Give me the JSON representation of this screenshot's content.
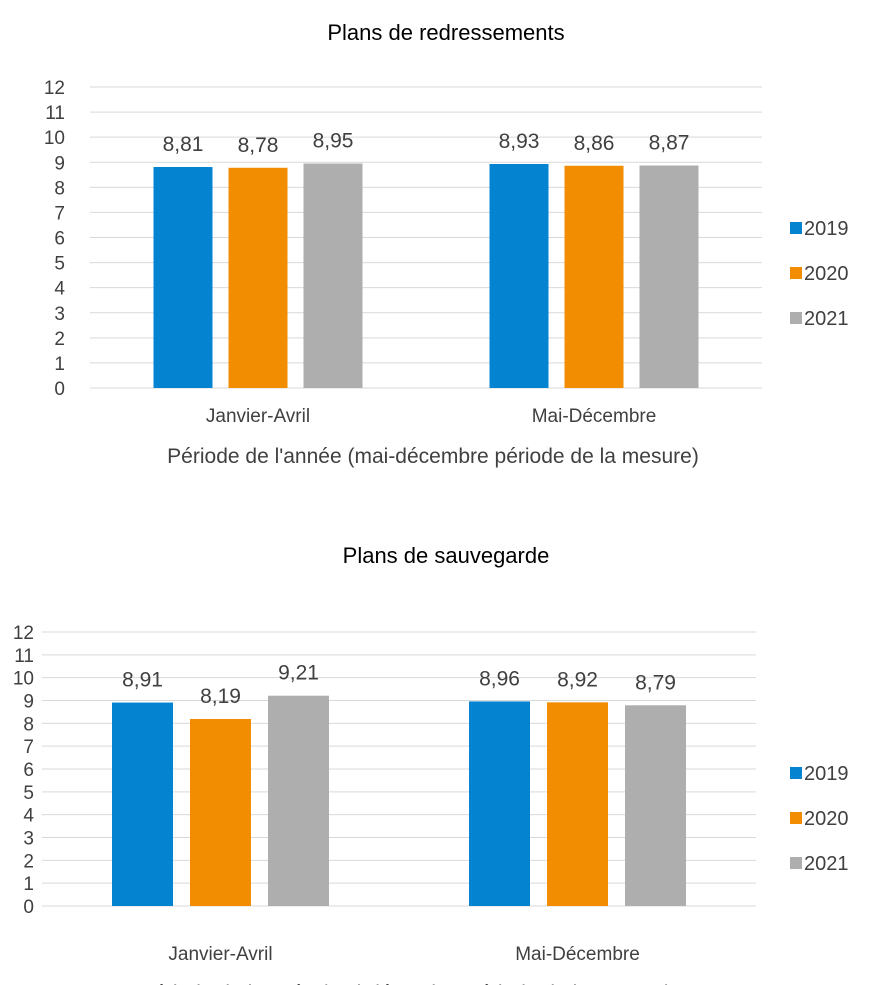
{
  "chart_data": [
    {
      "type": "bar",
      "title": "Plans de redressements",
      "xlabel": "Période de l'année (mai-décembre période de la mesure)",
      "ylabel": "",
      "categories": [
        "Janvier-Avril",
        "Mai-Décembre"
      ],
      "series": [
        {
          "name": "2019",
          "values": [
            8.81,
            8.93
          ],
          "labels": [
            "8,81",
            "8,93"
          ]
        },
        {
          "name": "2020",
          "values": [
            8.78,
            8.86
          ],
          "labels": [
            "8,78",
            "8,86"
          ]
        },
        {
          "name": "2021",
          "values": [
            8.95,
            8.87
          ],
          "labels": [
            "8,95",
            "8,87"
          ]
        }
      ],
      "ylim": [
        0,
        12
      ],
      "yticks": [
        0,
        1,
        2,
        3,
        4,
        5,
        6,
        7,
        8,
        9,
        10,
        11,
        12
      ],
      "grid": true,
      "legend": "right"
    },
    {
      "type": "bar",
      "title": "Plans de sauvegarde",
      "xlabel": "Période de l'année (mai-décembre période de la mesure)",
      "ylabel": "",
      "categories": [
        "Janvier-Avril",
        "Mai-Décembre"
      ],
      "series": [
        {
          "name": "2019",
          "values": [
            8.91,
            8.96
          ],
          "labels": [
            "8,91",
            "8,96"
          ]
        },
        {
          "name": "2020",
          "values": [
            8.19,
            8.92
          ],
          "labels": [
            "8,19",
            "8,92"
          ]
        },
        {
          "name": "2021",
          "values": [
            9.21,
            8.79
          ],
          "labels": [
            "9,21",
            "8,79"
          ]
        }
      ],
      "ylim": [
        0,
        12
      ],
      "yticks": [
        0,
        1,
        2,
        3,
        4,
        5,
        6,
        7,
        8,
        9,
        10,
        11,
        12
      ],
      "grid": true,
      "legend": "right"
    }
  ],
  "colors": {
    "2019": "#0383d0",
    "2020": "#f28c00",
    "2021": "#aeaeae",
    "grid": "#d9d9d9",
    "text": "#404040"
  }
}
